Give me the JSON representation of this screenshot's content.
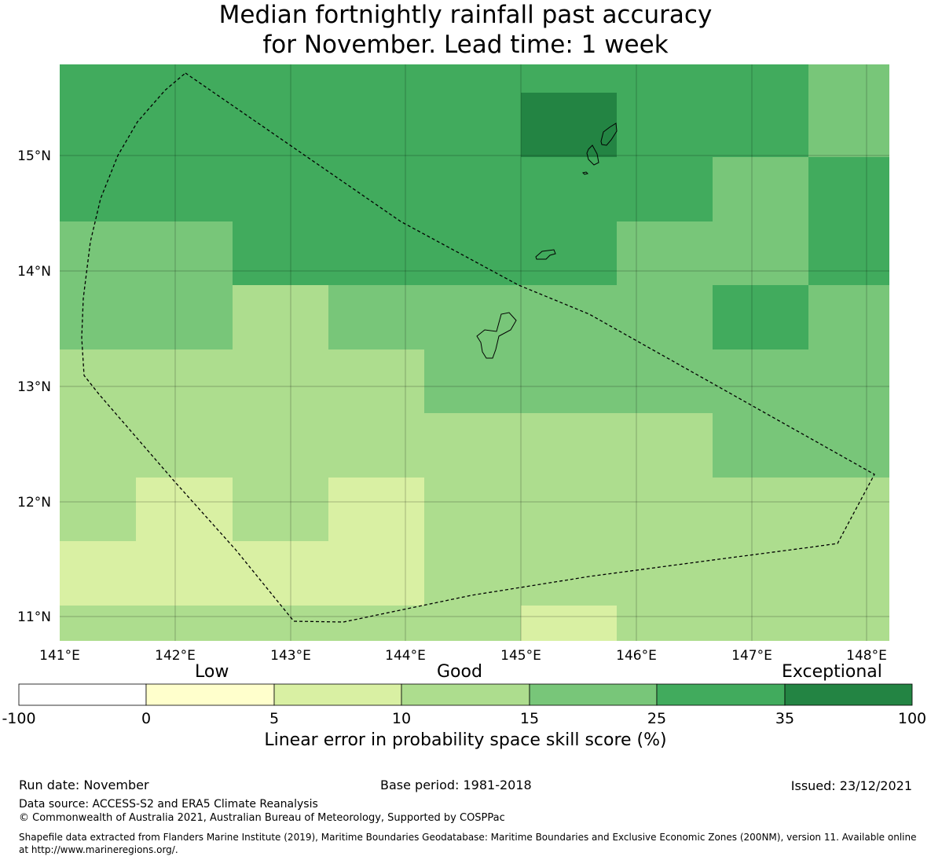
{
  "title": {
    "line1": "Median fortnightly rainfall past accuracy",
    "line2": "for November. Lead time: 1 week"
  },
  "map": {
    "lon_ticks": [
      "141°E",
      "142°E",
      "143°E",
      "144°E",
      "145°E",
      "146°E",
      "147°E",
      "148°E"
    ],
    "lat_ticks": [
      "15°N",
      "14°N",
      "13°N",
      "12°N",
      "11°N"
    ]
  },
  "colorbar": {
    "words": {
      "low": "Low",
      "good": "Good",
      "exceptional": "Exceptional"
    },
    "ticks": [
      "-100",
      "0",
      "5",
      "10",
      "15",
      "25",
      "35",
      "100"
    ],
    "colors": [
      "#ffffff",
      "#ffffcc",
      "#d9f0a3",
      "#addd8e",
      "#78c679",
      "#41ab5d",
      "#238443"
    ],
    "label": "Linear error in probability space skill score (%)"
  },
  "footer": {
    "run_date": "Run date: November",
    "base_period": "Base period: 1981-2018",
    "issued": "Issued: 23/12/2021",
    "data_source": "Data source: ACCESS-S2 and ERA5 Climate Reanalysis",
    "copyright": "© Commonwealth of Australia 2021, Australian Bureau of Meteorology, Supported by COSPPac",
    "shapefile": "Shapefile data extracted from Flanders Marine Institute (2019), Maritime Boundaries Geodatabase: Maritime Boundaries and Exclusive Economic Zones (200NM), version 11. Available online at http://www.marineregions.org/."
  },
  "grid_colors": {
    "c0": "#d9f0a3",
    "c1": "#addd8e",
    "c2": "#78c679",
    "c3": "#41ab5d",
    "c4": "#238443"
  }
}
